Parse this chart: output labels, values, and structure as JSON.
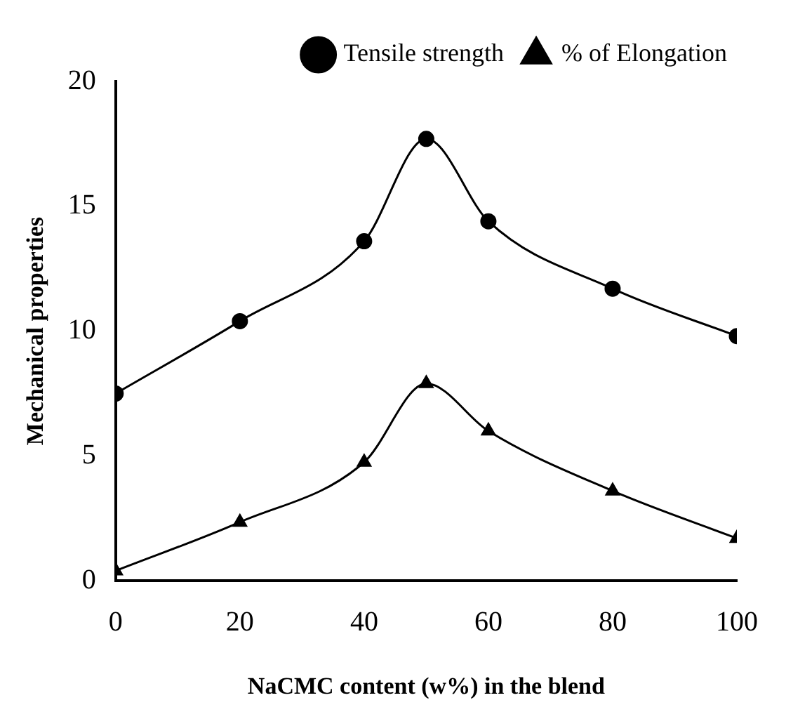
{
  "chart_data": {
    "type": "line",
    "xlabel": "NaCMC content (w%) in the blend",
    "ylabel": "Mechanical properties",
    "x": [
      0,
      20,
      40,
      50,
      60,
      80,
      100
    ],
    "series": [
      {
        "name": "Tensile strength",
        "color": "#000000",
        "marker": "circle",
        "values": [
          7.5,
          10.4,
          13.6,
          17.7,
          14.4,
          11.7,
          9.8
        ]
      },
      {
        "name": "% of Elongation",
        "color": "#000000",
        "marker": "triangle",
        "values": [
          0.4,
          2.35,
          4.75,
          7.9,
          6.0,
          3.6,
          1.7
        ]
      }
    ],
    "xlim": [
      0,
      100
    ],
    "xticks": [
      0,
      20,
      40,
      60,
      80,
      100
    ],
    "ylim": [
      0,
      20
    ],
    "yticks": [
      0,
      5,
      10,
      15,
      20
    ],
    "grid": false,
    "legend": "top right",
    "line_style": "solid"
  }
}
